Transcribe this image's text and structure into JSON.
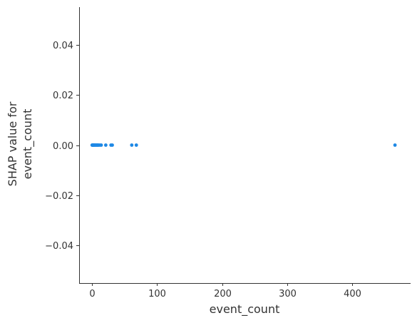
{
  "chart_data": {
    "type": "scatter",
    "xlabel": "event_count",
    "ylabel": [
      "SHAP value for",
      "event_count"
    ],
    "xlim": [
      -20,
      490
    ],
    "ylim": [
      -0.055,
      0.055
    ],
    "xticks": [
      0,
      100,
      200,
      300,
      400
    ],
    "yticks": [
      -0.04,
      -0.02,
      0.0,
      0.02,
      0.04
    ],
    "xtick_labels": [
      "0",
      "100",
      "200",
      "300",
      "400"
    ],
    "ytick_labels": [
      "−0.04",
      "−0.02",
      "0.00",
      "0.02",
      "0.04"
    ],
    "grid": false,
    "point_color": "#1e88e5",
    "series": [
      {
        "x": [
          0,
          0.5,
          1,
          1.5,
          2,
          2.5,
          3,
          4,
          5,
          6,
          7,
          8,
          9,
          10,
          12,
          14,
          21,
          29,
          31,
          61,
          68,
          466
        ],
        "y": [
          0,
          0,
          0,
          0,
          0,
          0,
          0,
          0,
          0,
          0,
          0,
          0,
          0,
          0,
          0,
          0,
          0,
          0,
          0,
          0,
          0,
          0
        ]
      }
    ]
  }
}
